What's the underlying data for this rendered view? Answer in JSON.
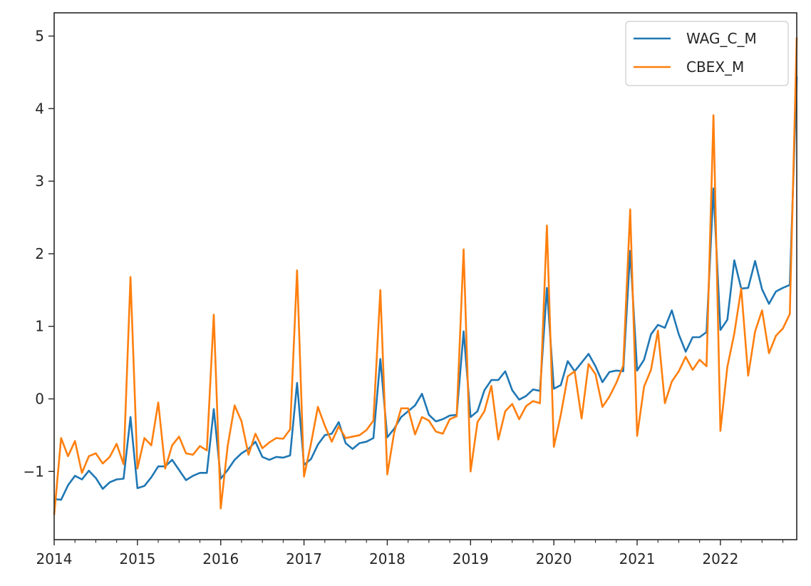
{
  "chart_data": {
    "type": "line",
    "x_start": "2014-01",
    "x_frequency": "monthly",
    "xticks": [
      "2014",
      "2015",
      "2016",
      "2017",
      "2018",
      "2019",
      "2020",
      "2021",
      "2022"
    ],
    "yticks": [
      "−1",
      "0",
      "1",
      "2",
      "3",
      "4",
      "5"
    ],
    "ytick_values": [
      -1,
      0,
      1,
      2,
      3,
      4,
      5
    ],
    "xlim": [
      "2014-01",
      "2022-12"
    ],
    "ylim": [
      -1.94,
      5.32
    ],
    "grid": false,
    "legend_position": "top-right",
    "series": [
      {
        "name": "WAG_C_M",
        "color": "#1f77b4",
        "values": [
          -1.38,
          -1.39,
          -1.19,
          -1.06,
          -1.11,
          -0.99,
          -1.09,
          -1.24,
          -1.15,
          -1.11,
          -1.1,
          -0.25,
          -1.23,
          -1.2,
          -1.08,
          -0.93,
          -0.93,
          -0.84,
          -0.98,
          -1.12,
          -1.06,
          -1.02,
          -1.02,
          -0.14,
          -1.1,
          -0.98,
          -0.84,
          -0.75,
          -0.69,
          -0.59,
          -0.8,
          -0.84,
          -0.8,
          -0.81,
          -0.78,
          0.22,
          -0.91,
          -0.83,
          -0.63,
          -0.5,
          -0.48,
          -0.32,
          -0.61,
          -0.69,
          -0.61,
          -0.59,
          -0.54,
          0.55,
          -0.53,
          -0.41,
          -0.25,
          -0.17,
          -0.09,
          0.07,
          -0.22,
          -0.31,
          -0.28,
          -0.23,
          -0.22,
          0.93,
          -0.25,
          -0.17,
          0.12,
          0.26,
          0.26,
          0.38,
          0.12,
          -0.01,
          0.04,
          0.13,
          0.11,
          1.53,
          0.14,
          0.19,
          0.52,
          0.38,
          0.5,
          0.62,
          0.45,
          0.23,
          0.37,
          0.39,
          0.38,
          2.04,
          0.39,
          0.54,
          0.89,
          1.02,
          0.98,
          1.22,
          0.89,
          0.65,
          0.85,
          0.85,
          0.92,
          2.9,
          0.95,
          1.09,
          1.91,
          1.52,
          1.53,
          1.9,
          1.51,
          1.31,
          1.48,
          1.53,
          1.57,
          4.44
        ]
      },
      {
        "name": "CBEX_M",
        "color": "#ff7f0e",
        "values": [
          -1.6,
          -0.54,
          -0.79,
          -0.58,
          -1.02,
          -0.79,
          -0.75,
          -0.89,
          -0.8,
          -0.62,
          -0.9,
          1.68,
          -0.96,
          -0.54,
          -0.64,
          -0.05,
          -0.96,
          -0.64,
          -0.52,
          -0.75,
          -0.77,
          -0.65,
          -0.71,
          1.16,
          -1.51,
          -0.65,
          -0.09,
          -0.31,
          -0.77,
          -0.48,
          -0.68,
          -0.6,
          -0.54,
          -0.55,
          -0.42,
          1.77,
          -1.07,
          -0.62,
          -0.11,
          -0.37,
          -0.59,
          -0.38,
          -0.54,
          -0.52,
          -0.5,
          -0.43,
          -0.3,
          1.5,
          -1.04,
          -0.46,
          -0.13,
          -0.13,
          -0.49,
          -0.25,
          -0.3,
          -0.45,
          -0.48,
          -0.28,
          -0.24,
          2.06,
          -1.0,
          -0.32,
          -0.17,
          0.18,
          -0.56,
          -0.17,
          -0.07,
          -0.28,
          -0.1,
          -0.03,
          -0.06,
          2.39,
          -0.66,
          -0.22,
          0.31,
          0.38,
          -0.27,
          0.48,
          0.34,
          -0.11,
          0.03,
          0.22,
          0.46,
          2.61,
          -0.51,
          0.17,
          0.4,
          0.94,
          -0.06,
          0.24,
          0.38,
          0.58,
          0.4,
          0.54,
          0.45,
          3.91,
          -0.44,
          0.44,
          0.9,
          1.52,
          0.32,
          0.93,
          1.22,
          0.63,
          0.87,
          0.97,
          1.17,
          4.98
        ]
      }
    ]
  }
}
